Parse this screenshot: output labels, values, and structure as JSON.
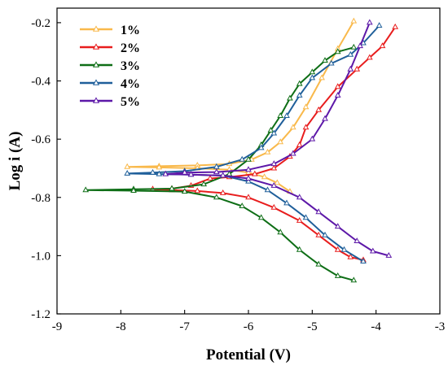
{
  "chart_data": {
    "type": "line",
    "title": "",
    "xlabel": "Potential (V)",
    "ylabel": "Log i (A)",
    "xlim": [
      -9,
      -3
    ],
    "ylim": [
      -1.2,
      -0.15
    ],
    "x_ticks": [
      -9,
      -8,
      -7,
      -6,
      -5,
      -4,
      -3
    ],
    "y_ticks": [
      -1.2,
      -1.0,
      -0.8,
      -0.6,
      -0.4,
      -0.2
    ],
    "x_tick_labels": [
      "-9",
      "-8",
      "-7",
      "-6",
      "-5",
      "-4",
      "-3"
    ],
    "y_tick_labels": [
      "-1.2",
      "-1.0",
      "-0.8",
      "-0.6",
      "-0.4",
      "-0.2"
    ],
    "grid": false,
    "legend_position": "top-left",
    "series": [
      {
        "name": "1%",
        "color": "#f9b94b",
        "points": [
          [
            -4.35,
            -0.195
          ],
          [
            -4.6,
            -0.29
          ],
          [
            -4.85,
            -0.39
          ],
          [
            -5.1,
            -0.49
          ],
          [
            -5.3,
            -0.56
          ],
          [
            -5.5,
            -0.61
          ],
          [
            -5.7,
            -0.645
          ],
          [
            -5.95,
            -0.67
          ],
          [
            -6.3,
            -0.685
          ],
          [
            -6.8,
            -0.69
          ],
          [
            -7.4,
            -0.693
          ],
          [
            -7.9,
            -0.695
          ],
          [
            -7.4,
            -0.697
          ],
          [
            -6.8,
            -0.7
          ],
          [
            -6.3,
            -0.705
          ],
          [
            -6.0,
            -0.715
          ],
          [
            -5.75,
            -0.73
          ],
          [
            -5.55,
            -0.75
          ],
          [
            -5.35,
            -0.78
          ]
        ]
      },
      {
        "name": "2%",
        "color": "#e81d1d",
        "points": [
          [
            -3.7,
            -0.215
          ],
          [
            -3.9,
            -0.28
          ],
          [
            -4.1,
            -0.32
          ],
          [
            -4.3,
            -0.36
          ],
          [
            -4.6,
            -0.42
          ],
          [
            -4.9,
            -0.5
          ],
          [
            -5.1,
            -0.56
          ],
          [
            -5.2,
            -0.62
          ],
          [
            -5.35,
            -0.66
          ],
          [
            -5.6,
            -0.7
          ],
          [
            -5.9,
            -0.72
          ],
          [
            -6.3,
            -0.73
          ],
          [
            -6.6,
            -0.735
          ],
          [
            -6.9,
            -0.76
          ],
          [
            -7.2,
            -0.77
          ],
          [
            -7.5,
            -0.772
          ],
          [
            -7.2,
            -0.775
          ],
          [
            -6.8,
            -0.778
          ],
          [
            -6.4,
            -0.785
          ],
          [
            -6.0,
            -0.8
          ],
          [
            -5.6,
            -0.835
          ],
          [
            -5.2,
            -0.88
          ],
          [
            -4.9,
            -0.93
          ],
          [
            -4.6,
            -0.98
          ],
          [
            -4.4,
            -1.005
          ],
          [
            -4.2,
            -1.015
          ]
        ]
      },
      {
        "name": "3%",
        "color": "#0e6e16",
        "points": [
          [
            -4.35,
            -0.285
          ],
          [
            -4.6,
            -0.3
          ],
          [
            -4.8,
            -0.33
          ],
          [
            -5.0,
            -0.37
          ],
          [
            -5.2,
            -0.41
          ],
          [
            -5.35,
            -0.46
          ],
          [
            -5.5,
            -0.52
          ],
          [
            -5.65,
            -0.57
          ],
          [
            -5.8,
            -0.62
          ],
          [
            -6.0,
            -0.67
          ],
          [
            -6.3,
            -0.72
          ],
          [
            -6.7,
            -0.755
          ],
          [
            -7.2,
            -0.77
          ],
          [
            -7.8,
            -0.772
          ],
          [
            -8.55,
            -0.775
          ],
          [
            -7.8,
            -0.777
          ],
          [
            -7.0,
            -0.78
          ],
          [
            -6.5,
            -0.8
          ],
          [
            -6.1,
            -0.83
          ],
          [
            -5.8,
            -0.87
          ],
          [
            -5.5,
            -0.92
          ],
          [
            -5.2,
            -0.98
          ],
          [
            -4.9,
            -1.03
          ],
          [
            -4.6,
            -1.07
          ],
          [
            -4.35,
            -1.085
          ]
        ]
      },
      {
        "name": "4%",
        "color": "#1f5f9a",
        "points": [
          [
            -3.95,
            -0.21
          ],
          [
            -4.2,
            -0.27
          ],
          [
            -4.4,
            -0.31
          ],
          [
            -4.7,
            -0.34
          ],
          [
            -5.0,
            -0.39
          ],
          [
            -5.2,
            -0.45
          ],
          [
            -5.4,
            -0.52
          ],
          [
            -5.6,
            -0.58
          ],
          [
            -5.8,
            -0.63
          ],
          [
            -6.1,
            -0.67
          ],
          [
            -6.5,
            -0.695
          ],
          [
            -7.0,
            -0.71
          ],
          [
            -7.5,
            -0.715
          ],
          [
            -7.9,
            -0.718
          ],
          [
            -7.4,
            -0.72
          ],
          [
            -6.9,
            -0.722
          ],
          [
            -6.4,
            -0.725
          ],
          [
            -6.0,
            -0.745
          ],
          [
            -5.7,
            -0.775
          ],
          [
            -5.4,
            -0.82
          ],
          [
            -5.1,
            -0.87
          ],
          [
            -4.8,
            -0.93
          ],
          [
            -4.5,
            -0.98
          ],
          [
            -4.2,
            -1.02
          ]
        ]
      },
      {
        "name": "5%",
        "color": "#5d18a8",
        "points": [
          [
            -4.1,
            -0.2
          ],
          [
            -4.25,
            -0.28
          ],
          [
            -4.4,
            -0.36
          ],
          [
            -4.6,
            -0.45
          ],
          [
            -4.8,
            -0.53
          ],
          [
            -5.0,
            -0.6
          ],
          [
            -5.3,
            -0.65
          ],
          [
            -5.6,
            -0.685
          ],
          [
            -6.0,
            -0.705
          ],
          [
            -6.5,
            -0.713
          ],
          [
            -7.0,
            -0.715
          ],
          [
            -7.3,
            -0.72
          ],
          [
            -6.9,
            -0.722
          ],
          [
            -6.4,
            -0.725
          ],
          [
            -6.0,
            -0.735
          ],
          [
            -5.6,
            -0.76
          ],
          [
            -5.2,
            -0.8
          ],
          [
            -4.9,
            -0.85
          ],
          [
            -4.6,
            -0.9
          ],
          [
            -4.3,
            -0.95
          ],
          [
            -4.05,
            -0.985
          ],
          [
            -3.8,
            -1.0
          ]
        ]
      }
    ]
  }
}
